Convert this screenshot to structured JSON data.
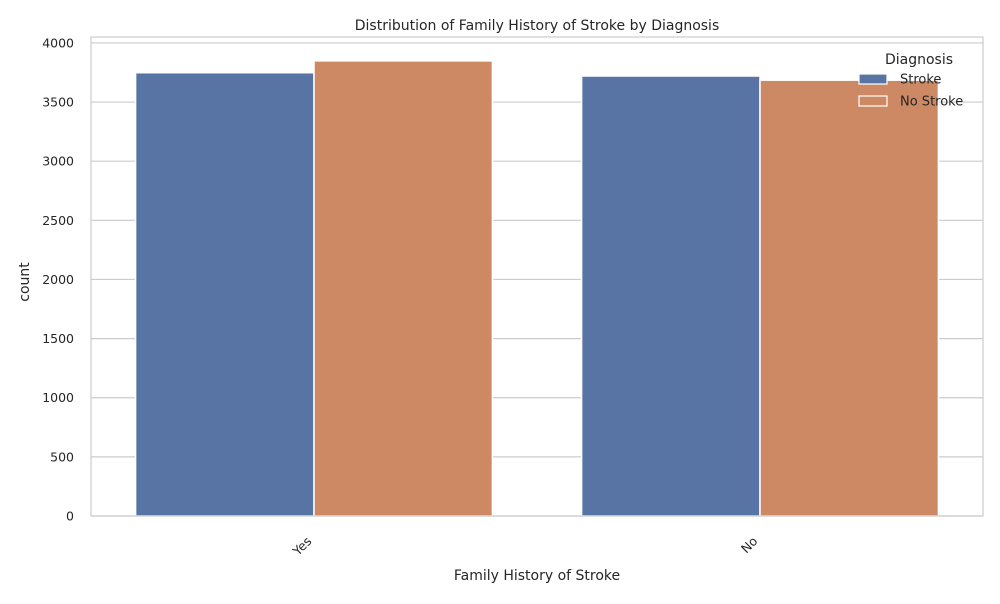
{
  "chart_data": {
    "type": "bar",
    "title": "Distribution of Family History of Stroke by Diagnosis",
    "xlabel": "Family History of Stroke",
    "ylabel": "count",
    "categories": [
      "Yes",
      "No"
    ],
    "series": [
      {
        "name": "Stroke",
        "values": [
          3748,
          3720
        ],
        "color": "#5874a4"
      },
      {
        "name": "No Stroke",
        "values": [
          3848,
          3685
        ],
        "color": "#cd8963"
      }
    ],
    "ylim": [
      0,
      4050
    ],
    "yticks": [
      0,
      500,
      1000,
      1500,
      2000,
      2500,
      3000,
      3500,
      4000
    ],
    "ytick_labels": [
      "0",
      "500",
      "1000",
      "1500",
      "2000",
      "2500",
      "3000",
      "3500",
      "4000"
    ],
    "grid": "horizontal",
    "legend": {
      "title": "Diagnosis",
      "placement": "top-right"
    },
    "xtick_rotation_deg": 45
  }
}
